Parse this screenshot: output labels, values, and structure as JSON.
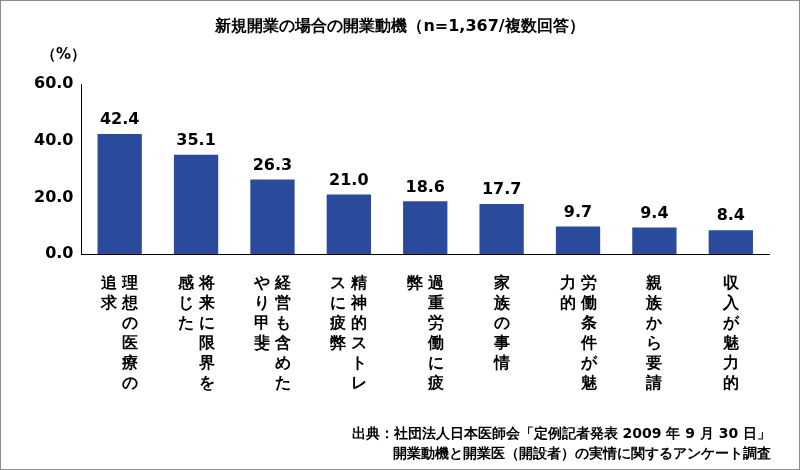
{
  "chart_data": {
    "type": "bar",
    "title": "新規開業の場合の開業動機（n=1,367/複数回答）",
    "ylabel": "（%）",
    "categories": [
      "理想の医療の追求",
      "将来に限界を感じた",
      "経営も含めたやり甲斐",
      "精神的ストレスに疲弊",
      "過重労働に疲弊",
      "家族の事情",
      "労働条件が魅力的",
      "親族から要請",
      "収入が魅力的"
    ],
    "values": [
      42.4,
      35.1,
      26.3,
      21.0,
      18.6,
      17.7,
      9.7,
      9.4,
      8.4
    ],
    "value_labels": [
      "42.4",
      "35.1",
      "26.3",
      "21.0",
      "18.6",
      "17.7",
      "9.7",
      "9.4",
      "8.4"
    ],
    "color": "#2a4b9b",
    "ylim": [
      0,
      60
    ],
    "yticks": [
      {
        "value": 0,
        "label": "0.0"
      },
      {
        "value": 20,
        "label": "20.0"
      },
      {
        "value": 40,
        "label": "40.0"
      },
      {
        "value": 60,
        "label": "60.0"
      }
    ],
    "grid": false,
    "data_labels": true,
    "source": [
      "出典：社団法人日本医師会「定例記者発表 2009 年 9 月 30 日」",
      "開業動機と開業医（開設者）の実情に関するアンケート調査"
    ]
  }
}
